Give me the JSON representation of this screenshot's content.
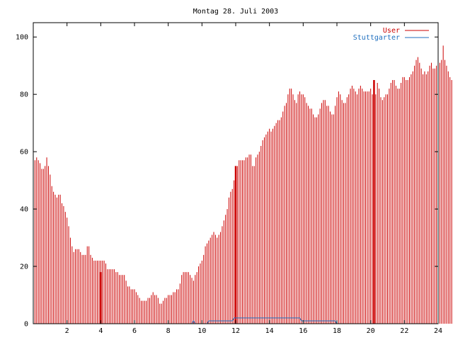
{
  "chart_data": {
    "type": "bar",
    "title": "Montag 28. Juli 2003",
    "xlabel": "",
    "ylabel": "",
    "xlim": [
      0,
      24
    ],
    "ylim": [
      0,
      105
    ],
    "x_ticks": [
      2,
      4,
      6,
      8,
      10,
      12,
      14,
      16,
      18,
      20,
      22,
      24
    ],
    "y_ticks": [
      0,
      20,
      40,
      60,
      80,
      100
    ],
    "grid": false,
    "legend": "top-right",
    "bin_hours": 0.1,
    "colors": {
      "User": "#cc0000",
      "Stuttgarter": "#1f6fbf",
      "axes": "#000000"
    },
    "series": [
      {
        "name": "User",
        "style": "bars",
        "values": [
          63,
          57,
          58,
          57,
          56,
          54,
          54,
          55,
          58,
          55,
          52,
          48,
          46,
          45,
          44,
          45,
          45,
          42,
          41,
          39,
          37,
          34,
          30,
          27,
          25,
          26,
          26,
          26,
          25,
          24,
          24,
          24,
          27,
          27,
          24,
          23,
          22,
          22,
          22,
          22,
          22,
          22,
          22,
          21,
          19,
          19,
          19,
          19,
          19,
          18,
          18,
          17,
          17,
          17,
          17,
          15,
          13,
          13,
          12,
          12,
          12,
          11,
          10,
          9,
          8,
          8,
          8,
          8,
          9,
          9,
          10,
          11,
          10,
          10,
          9,
          7,
          7,
          8,
          9,
          9,
          10,
          10,
          10,
          11,
          11,
          12,
          12,
          14,
          17,
          18,
          18,
          18,
          18,
          17,
          16,
          15,
          17,
          18,
          20,
          21,
          22,
          24,
          27,
          28,
          29,
          30,
          31,
          32,
          31,
          30,
          31,
          32,
          34,
          36,
          38,
          40,
          44,
          46,
          47,
          50,
          53,
          55,
          57,
          57,
          57,
          57,
          58,
          58,
          59,
          59,
          55,
          55,
          58,
          59,
          60,
          62,
          64,
          65,
          66,
          67,
          68,
          67,
          68,
          69,
          70,
          71,
          71,
          72,
          74,
          76,
          77,
          80,
          82,
          82,
          80,
          78,
          77,
          80,
          81,
          80,
          80,
          79,
          77,
          76,
          75,
          75,
          73,
          72,
          72,
          73,
          75,
          77,
          78,
          78,
          76,
          76,
          74,
          73,
          73,
          76,
          79,
          81,
          80,
          78,
          77,
          77,
          79,
          80,
          82,
          83,
          82,
          81,
          80,
          82,
          83,
          82,
          81,
          81,
          81,
          81,
          82,
          80,
          79,
          80,
          84,
          82,
          79,
          78,
          79,
          80,
          80,
          82,
          84,
          85,
          85,
          83,
          82,
          82,
          84,
          86,
          86,
          85,
          85,
          86,
          87,
          88,
          90,
          92,
          93,
          91,
          89,
          87,
          88,
          87,
          88,
          90,
          91,
          89,
          89,
          90,
          90,
          91,
          92,
          97,
          92,
          90,
          88,
          86,
          85,
          85,
          84,
          84,
          85,
          85,
          81,
          79,
          78,
          77,
          75,
          73,
          71
        ]
      },
      {
        "name": "Stuttgarter",
        "style": "line",
        "points": [
          [
            0,
            0
          ],
          [
            9.4,
            0
          ],
          [
            9.5,
            1
          ],
          [
            9.6,
            0
          ],
          [
            10.3,
            0
          ],
          [
            10.4,
            1
          ],
          [
            11.8,
            1
          ],
          [
            11.9,
            2
          ],
          [
            15.8,
            2
          ],
          [
            15.9,
            1
          ],
          [
            17.9,
            1
          ],
          [
            18.0,
            0
          ],
          [
            24,
            0
          ]
        ]
      }
    ],
    "spikes": [
      [
        4.0,
        18
      ],
      [
        12.0,
        55
      ],
      [
        20.2,
        85
      ]
    ]
  }
}
